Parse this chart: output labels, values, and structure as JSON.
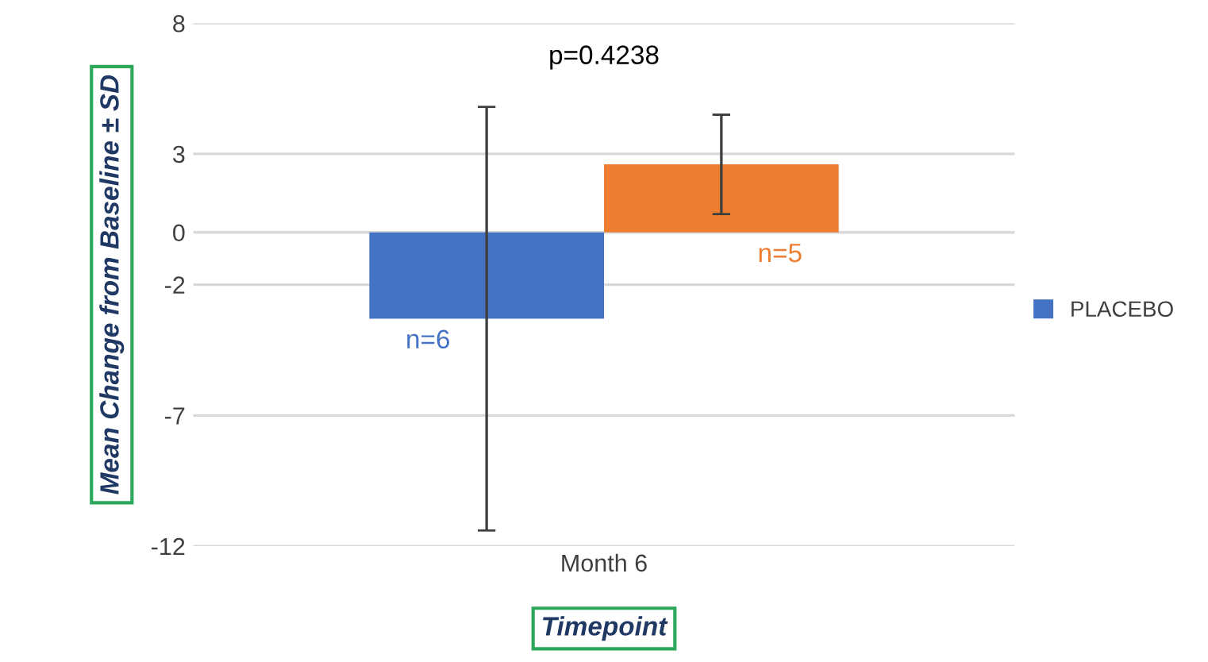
{
  "chart_data": {
    "type": "bar",
    "ylabel": "Mean Change from Baseline ± SD",
    "xlabel": "Timepoint",
    "categories": [
      "Month 6"
    ],
    "series": [
      {
        "name": "PLACEBO",
        "color": "#4472c4",
        "values": [
          -3.3
        ],
        "errors": [
          8.1
        ]
      },
      {
        "color": "#ed7d31",
        "values": [
          2.6
        ],
        "errors": [
          1.9
        ]
      }
    ],
    "ylim": [
      -12,
      8
    ],
    "yticks": [
      -12,
      -7,
      -2,
      0,
      3,
      8
    ],
    "grid": "y",
    "legend": "right",
    "annotations": [
      "p=0.4238",
      "n=6",
      "n=5"
    ]
  }
}
